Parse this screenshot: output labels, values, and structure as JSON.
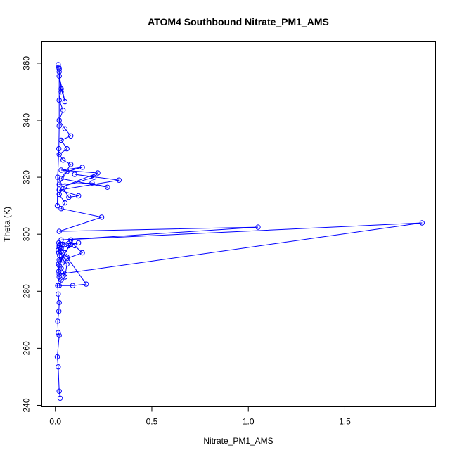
{
  "chart_data": {
    "type": "scatter",
    "title": "ATOM4 Southbound Nitrate_PM1_AMS",
    "xlabel": "Nitrate_PM1_AMS",
    "ylabel": "Theta (K)",
    "xlim": [
      -0.07,
      1.97
    ],
    "ylim": [
      239.5,
      367.5
    ],
    "x_ticks": [
      0.0,
      0.5,
      1.0,
      1.5
    ],
    "x_tick_labels": [
      "0.0",
      "0.5",
      "1.0",
      "1.5"
    ],
    "y_ticks": [
      240,
      260,
      280,
      300,
      320,
      340,
      360
    ],
    "y_tick_labels": [
      "240",
      "260",
      "280",
      "300",
      "320",
      "340",
      "360"
    ],
    "grid": false,
    "marker": "open-circle",
    "connected": true,
    "series_color": "#0000ff",
    "x": [
      0.025,
      0.02,
      0.015,
      0.01,
      0.02,
      0.015,
      0.012,
      0.018,
      0.02,
      0.015,
      0.012,
      0.02,
      0.018,
      0.016,
      0.02,
      0.022,
      0.018,
      0.015,
      0.02,
      0.025,
      0.018,
      0.02,
      0.03,
      0.04,
      0.06,
      0.05,
      0.03,
      0.02,
      0.09,
      0.16,
      0.06,
      0.03,
      0.08,
      0.05,
      0.03,
      0.02,
      0.07,
      0.12,
      0.04,
      0.08,
      0.1,
      0.14,
      0.06,
      0.03,
      0.05,
      0.02,
      1.9,
      0.03,
      1.05,
      0.02,
      0.24,
      0.03,
      0.05,
      0.02,
      0.04,
      0.07,
      0.12,
      0.02,
      0.33,
      0.1,
      0.2,
      0.05,
      0.22,
      0.03,
      0.14,
      0.06,
      0.02,
      0.19,
      0.27,
      0.03,
      0.08,
      0.04,
      0.02,
      0.06,
      0.03,
      0.08,
      0.05,
      0.02,
      0.04,
      0.02,
      0.03,
      0.05,
      0.02,
      0.03,
      0.02,
      0.018,
      0.015,
      0.02,
      0.02,
      0.018,
      0.012,
      0.01
    ],
    "y": [
      242.5,
      245,
      253.5,
      257,
      264.5,
      265.5,
      269.5,
      273,
      276,
      279,
      282,
      285,
      287,
      289.5,
      291,
      292.5,
      293.5,
      294.5,
      295.5,
      296.5,
      297,
      296,
      294,
      291,
      289.5,
      285,
      284,
      282,
      282,
      282.5,
      292,
      295,
      296.5,
      293.5,
      291,
      289,
      296,
      297,
      296.5,
      298,
      296,
      293.5,
      291.5,
      288,
      286,
      286,
      304,
      298,
      302.5,
      301,
      306,
      309,
      311,
      314,
      316,
      313,
      313.5,
      315.5,
      319,
      321,
      320,
      317,
      321.5,
      322.5,
      323.5,
      322,
      317.5,
      318,
      316.5,
      319.5,
      324.5,
      326,
      328,
      330,
      333,
      334.5,
      337,
      340,
      343.5,
      347,
      351,
      346.5,
      355.5,
      350,
      357,
      358.5,
      359.5,
      358,
      338,
      330,
      320,
      310
    ]
  }
}
